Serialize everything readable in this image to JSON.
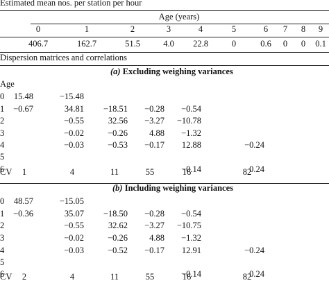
{
  "mean_section": {
    "title": "Estimated mean nos. per station per hour",
    "age_header": "Age (years)",
    "ages": [
      "0",
      "1",
      "2",
      "3",
      "4",
      "5",
      "6",
      "7",
      "8",
      "9"
    ],
    "values": [
      "406.7",
      "162.7",
      "51.5",
      "4.0",
      "22.8",
      "0",
      "0.6",
      "0",
      "0",
      "0.1"
    ]
  },
  "dispersion_section": {
    "title": "Dispersion matrices and correlations",
    "panel_a": {
      "letter": "(a)",
      "heading": " Excluding weighing variances",
      "age_label": "Age",
      "rows": [
        {
          "label": "0",
          "cells": [
            "15.48",
            "−15.48",
            "",
            "",
            "",
            "",
            ""
          ]
        },
        {
          "label": "1",
          "cells": [
            "−0.67",
            "34.81",
            "−18.51",
            "−0.28",
            "−0.54",
            "",
            ""
          ]
        },
        {
          "label": "2",
          "cells": [
            "",
            "−0.55",
            "32.56",
            "−3.27",
            "−10.78",
            "",
            ""
          ]
        },
        {
          "label": "3",
          "cells": [
            "",
            "−0.02",
            "−0.26",
            "4.88",
            "−1.32",
            "",
            ""
          ]
        },
        {
          "label": "4",
          "cells": [
            "",
            "−0.03",
            "−0.53",
            "−0.17",
            "12.88",
            "",
            "−0.24"
          ]
        },
        {
          "label": "5",
          "cells": [
            "",
            "",
            "",
            "",
            "",
            "",
            ""
          ]
        },
        {
          "label": "6",
          "cells": [
            "",
            "",
            "",
            "",
            "−0.14",
            "",
            "0.24"
          ]
        }
      ],
      "cv": {
        "label": "CV",
        "cells": [
          "1",
          "4",
          "11",
          "55",
          "16",
          "",
          "82"
        ]
      }
    },
    "panel_b": {
      "letter": "(b)",
      "heading": " Including weighing variances",
      "rows": [
        {
          "label": "0",
          "cells": [
            "48.57",
            "−15.05",
            "",
            "",
            "",
            "",
            ""
          ]
        },
        {
          "label": "1",
          "cells": [
            "−0.36",
            "35.07",
            "−18.50",
            "−0.28",
            "−0.54",
            "",
            ""
          ]
        },
        {
          "label": "2",
          "cells": [
            "",
            "−0.55",
            "32.62",
            "−3.27",
            "−10.75",
            "",
            ""
          ]
        },
        {
          "label": "3",
          "cells": [
            "",
            "−0.02",
            "−0.26",
            "4.88",
            "−1.32",
            "",
            ""
          ]
        },
        {
          "label": "4",
          "cells": [
            "",
            "−0.03",
            "−0.52",
            "−0.17",
            "12.91",
            "",
            "−0.24"
          ]
        },
        {
          "label": "5",
          "cells": [
            "",
            "",
            "",
            "",
            "",
            "",
            ""
          ]
        },
        {
          "label": "6",
          "cells": [
            "",
            "",
            "",
            "",
            "−0.14",
            "",
            "0.24"
          ]
        }
      ],
      "cv": {
        "label": "CV",
        "cells": [
          "2",
          "4",
          "11",
          "55",
          "16",
          "",
          "82"
        ]
      }
    }
  }
}
